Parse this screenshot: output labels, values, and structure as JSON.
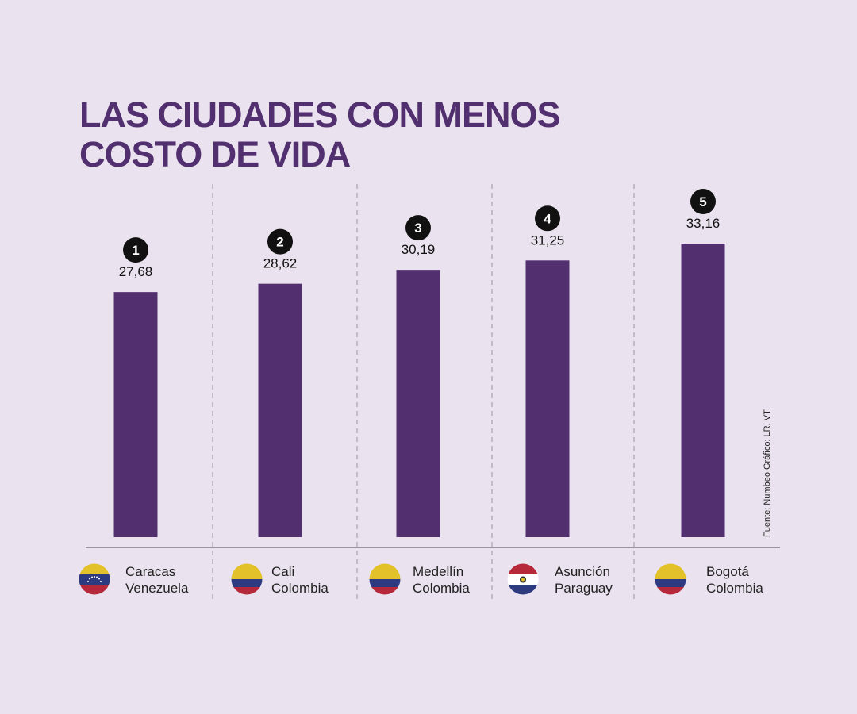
{
  "title_lines": [
    "Las ciudades con menos",
    "costo de vida"
  ],
  "source": "Fuente: Numbeo  Gráfico: LR, VT",
  "colors": {
    "background": "#EAE3EF",
    "bar": "#52306F",
    "title": "#52306F",
    "rank_circle": "#111111"
  },
  "chart_data": {
    "type": "bar",
    "title": "Las ciudades con menos costo de vida",
    "categories": [
      "Caracas, Venezuela",
      "Cali, Colombia",
      "Medellín, Colombia",
      "Asunción, Paraguay",
      "Bogotá, Colombia"
    ],
    "values": [
      27.68,
      28.62,
      30.19,
      31.25,
      33.16
    ],
    "value_labels": [
      "27,68",
      "28,62",
      "30,19",
      "31,25",
      "33,16"
    ],
    "ranks": [
      "1",
      "2",
      "3",
      "4",
      "5"
    ],
    "xlabel": "",
    "ylabel": "",
    "ylim": [
      0,
      33.16
    ],
    "grid": false,
    "legend": "none"
  },
  "cities": [
    {
      "city": "Caracas",
      "country": "Venezuela",
      "flag": "venezuela-flag-icon"
    },
    {
      "city": "Cali",
      "country": "Colombia",
      "flag": "colombia-flag-icon"
    },
    {
      "city": "Medellín",
      "country": "Colombia",
      "flag": "colombia-flag-icon"
    },
    {
      "city": "Asunción",
      "country": "Paraguay",
      "flag": "paraguay-flag-icon"
    },
    {
      "city": "Bogotá",
      "country": "Colombia",
      "flag": "colombia-flag-icon"
    }
  ]
}
